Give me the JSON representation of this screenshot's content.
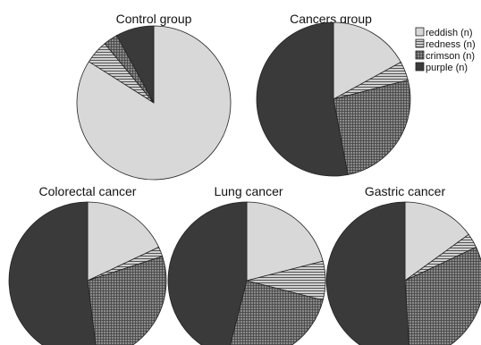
{
  "legend": [
    {
      "label": "reddish (n)",
      "pattern": "solid-light"
    },
    {
      "label": "redness (n)",
      "pattern": "horizontal-lines"
    },
    {
      "label": "crimson (n)",
      "pattern": "crosshatch"
    },
    {
      "label": "purple (n)",
      "pattern": "solid-dark"
    }
  ],
  "colors": {
    "reddish": "#d8d8d8",
    "redness": "#b9b9b9",
    "crimson": "#7a7a7a",
    "purple": "#3a3a3a",
    "outline": "#222222"
  },
  "chart_data": [
    {
      "type": "pie",
      "title": "Control group",
      "categories": [
        "reddish (n)",
        "redness (n)",
        "crimson (n)",
        "purple (n)"
      ],
      "values": [
        84,
        5,
        3,
        8
      ],
      "start": "12 o'clock",
      "direction": "clockwise"
    },
    {
      "type": "pie",
      "title": "Cancers group",
      "categories": [
        "reddish (n)",
        "redness (n)",
        "crimson (n)",
        "purple (n)"
      ],
      "values": [
        17,
        4,
        26,
        53
      ],
      "start": "12 o'clock",
      "direction": "clockwise"
    },
    {
      "type": "pie",
      "title": "Colorectal cancer",
      "categories": [
        "reddish (n)",
        "redness (n)",
        "crimson (n)",
        "purple (n)"
      ],
      "values": [
        18,
        2,
        28,
        52
      ],
      "start": "12 o'clock",
      "direction": "clockwise"
    },
    {
      "type": "pie",
      "title": "Lung cancer",
      "categories": [
        "reddish (n)",
        "redness (n)",
        "crimson (n)",
        "purple (n)"
      ],
      "values": [
        21,
        8,
        25,
        46
      ],
      "start": "12 o'clock",
      "direction": "clockwise"
    },
    {
      "type": "pie",
      "title": "Gastric cancer",
      "categories": [
        "reddish (n)",
        "redness (n)",
        "crimson (n)",
        "purple (n)"
      ],
      "values": [
        15,
        3,
        31,
        51
      ],
      "start": "12 o'clock",
      "direction": "clockwise"
    }
  ]
}
